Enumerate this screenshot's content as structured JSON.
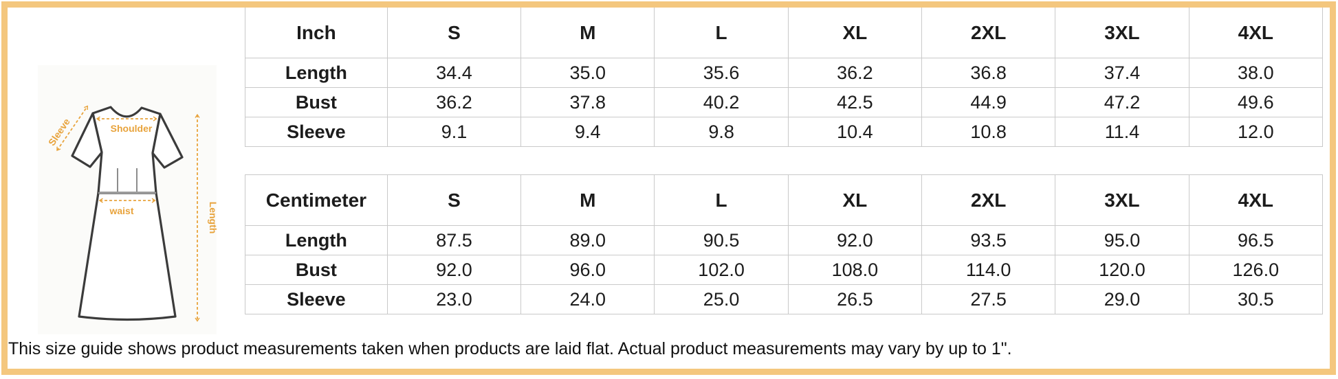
{
  "frame": {
    "border_color": "#F4C77E"
  },
  "diagram": {
    "name": "dress-measurement-diagram",
    "outline_color": "#3b3b3b",
    "annotation_color": "#E8A33C",
    "labels": {
      "sleeve": "Sleeve",
      "shoulder": "Shoulder",
      "waist": "waist",
      "length": "Length"
    }
  },
  "size_tables": [
    {
      "unit_label": "Inch",
      "columns": [
        "S",
        "M",
        "L",
        "XL",
        "2XL",
        "3XL",
        "4XL"
      ],
      "rows": [
        {
          "label": "Length",
          "values": [
            "34.4",
            "35.0",
            "35.6",
            "36.2",
            "36.8",
            "37.4",
            "38.0"
          ]
        },
        {
          "label": "Bust",
          "values": [
            "36.2",
            "37.8",
            "40.2",
            "42.5",
            "44.9",
            "47.2",
            "49.6"
          ]
        },
        {
          "label": "Sleeve",
          "values": [
            "9.1",
            "9.4",
            "9.8",
            "10.4",
            "10.8",
            "11.4",
            "12.0"
          ]
        }
      ]
    },
    {
      "unit_label": "Centimeter",
      "columns": [
        "S",
        "M",
        "L",
        "XL",
        "2XL",
        "3XL",
        "4XL"
      ],
      "rows": [
        {
          "label": "Length",
          "values": [
            "87.5",
            "89.0",
            "90.5",
            "92.0",
            "93.5",
            "95.0",
            "96.5"
          ]
        },
        {
          "label": "Bust",
          "values": [
            "92.0",
            "96.0",
            "102.0",
            "108.0",
            "114.0",
            "120.0",
            "126.0"
          ]
        },
        {
          "label": "Sleeve",
          "values": [
            "23.0",
            "24.0",
            "25.0",
            "26.5",
            "27.5",
            "29.0",
            "30.5"
          ]
        }
      ]
    }
  ],
  "footer_note": "This size guide shows product measurements taken when products are laid flat. Actual product measurements may vary by up to 1\".",
  "chart_data": [
    {
      "type": "table",
      "title": "Inch",
      "columns": [
        "S",
        "M",
        "L",
        "XL",
        "2XL",
        "3XL",
        "4XL"
      ],
      "rows": [
        {
          "label": "Length",
          "values": [
            34.4,
            35.0,
            35.6,
            36.2,
            36.8,
            37.4,
            38.0
          ]
        },
        {
          "label": "Bust",
          "values": [
            36.2,
            37.8,
            40.2,
            42.5,
            44.9,
            47.2,
            49.6
          ]
        },
        {
          "label": "Sleeve",
          "values": [
            9.1,
            9.4,
            9.8,
            10.4,
            10.8,
            11.4,
            12.0
          ]
        }
      ]
    },
    {
      "type": "table",
      "title": "Centimeter",
      "columns": [
        "S",
        "M",
        "L",
        "XL",
        "2XL",
        "3XL",
        "4XL"
      ],
      "rows": [
        {
          "label": "Length",
          "values": [
            87.5,
            89.0,
            90.5,
            92.0,
            93.5,
            95.0,
            96.5
          ]
        },
        {
          "label": "Bust",
          "values": [
            92.0,
            96.0,
            102.0,
            108.0,
            114.0,
            120.0,
            126.0
          ]
        },
        {
          "label": "Sleeve",
          "values": [
            23.0,
            24.0,
            25.0,
            26.5,
            27.5,
            29.0,
            30.5
          ]
        }
      ]
    }
  ]
}
